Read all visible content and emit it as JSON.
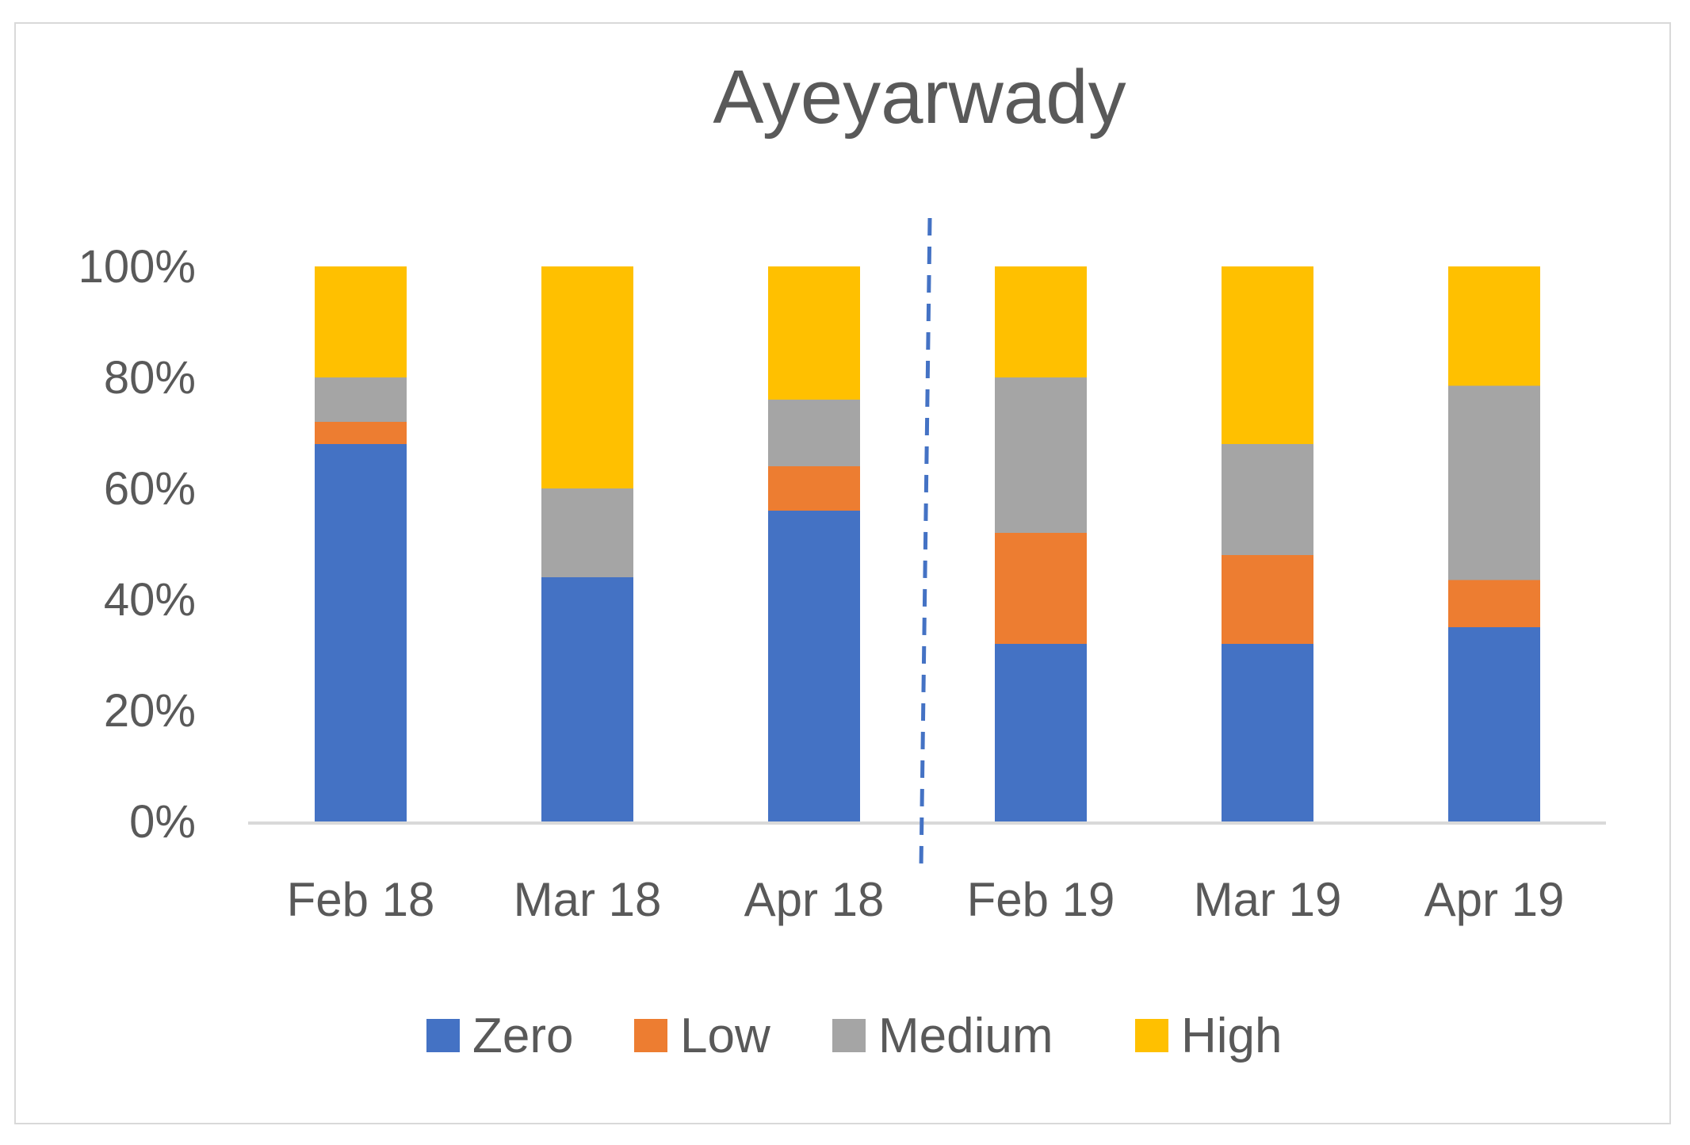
{
  "chart_data": {
    "type": "bar",
    "stacked": true,
    "percent": true,
    "title": "Ayeyarwady",
    "xlabel": "",
    "ylabel": "",
    "ylim": [
      0,
      100
    ],
    "yticks": [
      "0%",
      "20%",
      "40%",
      "60%",
      "80%",
      "100%"
    ],
    "categories": [
      "Feb 18",
      "Mar 18",
      "Apr 18",
      "Feb 19",
      "Mar 19",
      "Apr 19"
    ],
    "series": [
      {
        "name": "Zero",
        "color": "#4472c4",
        "values": [
          68,
          44,
          56,
          32,
          32,
          35
        ]
      },
      {
        "name": "Low",
        "color": "#ed7d31",
        "values": [
          4,
          0,
          8,
          20,
          16,
          8.5
        ]
      },
      {
        "name": "Medium",
        "color": "#a5a5a5",
        "values": [
          8,
          16,
          12,
          28,
          20,
          35
        ]
      },
      {
        "name": "High",
        "color": "#ffc000",
        "values": [
          20,
          40,
          24,
          20,
          32,
          21.5
        ]
      }
    ],
    "divider": {
      "after_category_index": 2,
      "style": "dashed",
      "color": "#4472c4"
    },
    "legend_position": "bottom",
    "grid": false
  }
}
